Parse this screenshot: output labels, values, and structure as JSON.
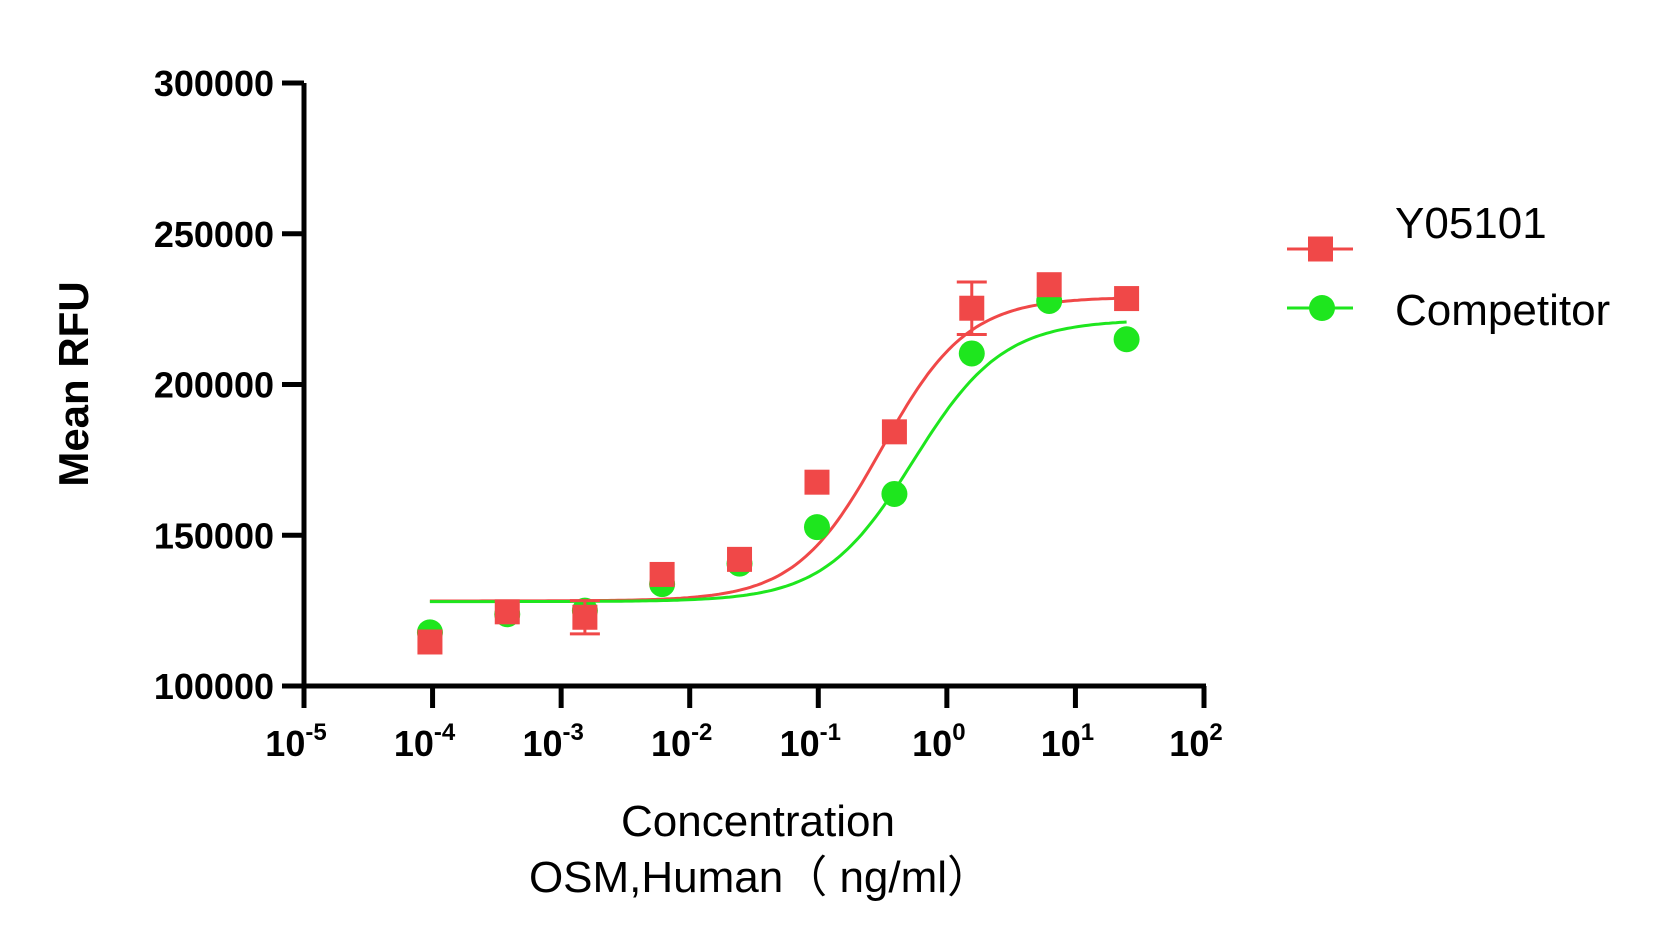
{
  "chart_data": {
    "type": "scatter",
    "subtype": "dose-response with 4PL fitted curves",
    "xlabel": "Concentration",
    "xlabel_line2": "OSM,Human（ ng/ml）",
    "ylabel": "Mean RFU",
    "xscale": "log",
    "xlim": [
      1e-05,
      100
    ],
    "ylim": [
      100000,
      300000
    ],
    "x_ticks": [
      {
        "base": "10",
        "exp": "-5",
        "value": 1e-05
      },
      {
        "base": "10",
        "exp": "-4",
        "value": 0.0001
      },
      {
        "base": "10",
        "exp": "-3",
        "value": 0.001
      },
      {
        "base": "10",
        "exp": "-2",
        "value": 0.01
      },
      {
        "base": "10",
        "exp": "-1",
        "value": 0.1
      },
      {
        "base": "10",
        "exp": "0",
        "value": 1
      },
      {
        "base": "10",
        "exp": "1",
        "value": 10
      },
      {
        "base": "10",
        "exp": "2",
        "value": 100
      }
    ],
    "y_ticks": [
      "100000",
      "150000",
      "200000",
      "250000",
      "300000"
    ],
    "grid": false,
    "legend_position": "right",
    "x": [
      9.54e-05,
      0.000381,
      0.00153,
      0.0061,
      0.0244,
      0.0977,
      0.391,
      1.5625,
      6.25,
      25
    ],
    "series": [
      {
        "name": "Y05101",
        "color": "#f04848",
        "marker": "square",
        "values": [
          114600,
          124600,
          122800,
          137000,
          142000,
          167600,
          184300,
          225300,
          233100,
          228500
        ],
        "error": [
          0,
          0,
          5500,
          0,
          0,
          0,
          0,
          8700,
          0,
          0
        ],
        "fit": {
          "bottom": 128200,
          "top": 229000,
          "ec50": 0.31,
          "hill": 1.3
        }
      },
      {
        "name": "Competitor",
        "color": "#1ee61e",
        "marker": "circle",
        "values": [
          117800,
          123800,
          125000,
          133800,
          140600,
          152700,
          163700,
          210300,
          227700,
          215000
        ],
        "error": [
          0,
          0,
          0,
          0,
          0,
          0,
          0,
          0,
          0,
          0
        ],
        "fit": {
          "bottom": 128000,
          "top": 221500,
          "ec50": 0.55,
          "hill": 1.25
        }
      }
    ]
  }
}
